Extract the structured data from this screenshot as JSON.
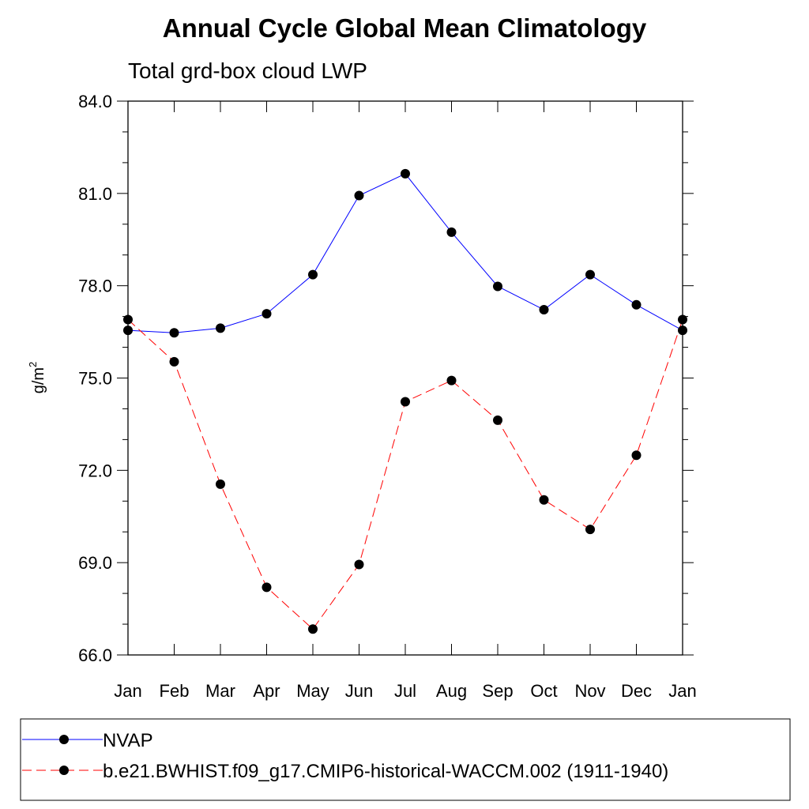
{
  "chart_data": {
    "type": "line",
    "title": "Annual Cycle Global Mean Climatology",
    "subtitle": "Total grd-box cloud LWP",
    "ylabel": "g/m",
    "ylabel_superscript": "2",
    "ylim": [
      66.0,
      84.0
    ],
    "yticks": [
      "66.0",
      "69.0",
      "72.0",
      "75.0",
      "78.0",
      "81.0",
      "84.0"
    ],
    "ytick_values": [
      66,
      69,
      72,
      75,
      78,
      81,
      84
    ],
    "categories": [
      "Jan",
      "Feb",
      "Mar",
      "Apr",
      "May",
      "Jun",
      "Jul",
      "Aug",
      "Sep",
      "Oct",
      "Nov",
      "Dec",
      "Jan"
    ],
    "grid": false,
    "legend_position": "bottom",
    "series": [
      {
        "name": "NVAP",
        "color": "#0000ff",
        "dash": "solid",
        "values": [
          76.55,
          76.47,
          76.62,
          77.09,
          78.36,
          80.93,
          81.64,
          79.74,
          77.98,
          77.22,
          78.36,
          77.38,
          76.55
        ]
      },
      {
        "name": "b.e21.BWHIST.f09_g17.CMIP6-historical-WACCM.002 (1911-1940)",
        "color": "#ff0000",
        "dash": "dashed",
        "values": [
          76.9,
          75.53,
          71.55,
          68.2,
          66.84,
          68.94,
          74.23,
          74.92,
          73.63,
          71.04,
          70.08,
          72.49,
          76.9
        ]
      }
    ]
  }
}
